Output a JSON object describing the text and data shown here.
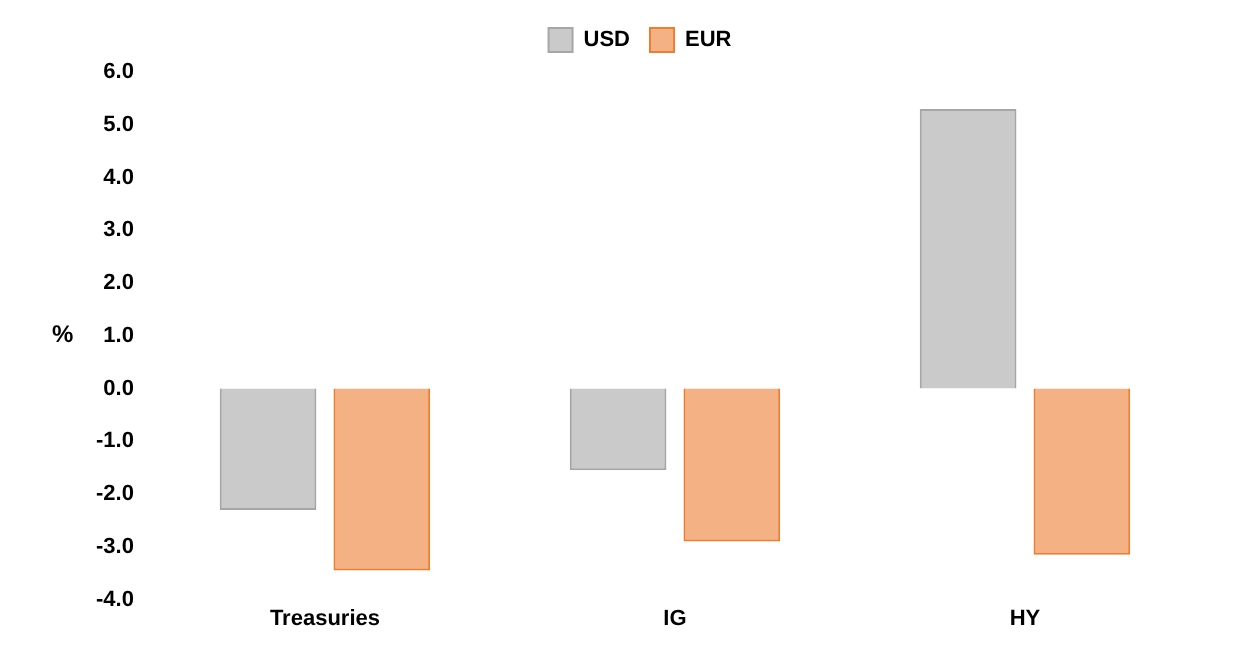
{
  "chart_data": {
    "type": "bar",
    "ylabel": "%",
    "categories": [
      "Treasuries",
      "IG",
      "HY"
    ],
    "series": [
      {
        "name": "USD",
        "color": "#a6a6a6",
        "values": [
          -2.3,
          -1.55,
          5.3
        ]
      },
      {
        "name": "EUR",
        "color": "#ed7d31",
        "values": [
          -3.45,
          -2.9,
          -3.15
        ]
      }
    ],
    "ylim": [
      -4,
      6
    ],
    "yticks": [
      {
        "value": -4,
        "label": "-4.0"
      },
      {
        "value": -3,
        "label": "-3.0"
      },
      {
        "value": -2,
        "label": "-2.0"
      },
      {
        "value": -1,
        "label": "-1.0"
      },
      {
        "value": 0,
        "label": "0.0"
      },
      {
        "value": 1,
        "label": "1.0"
      },
      {
        "value": 2,
        "label": "2.0"
      },
      {
        "value": 3,
        "label": "3.0"
      },
      {
        "value": 4,
        "label": "4.0"
      },
      {
        "value": 5,
        "label": "5.0"
      },
      {
        "value": 6,
        "label": "6.0"
      }
    ],
    "grid": false,
    "legend": "top"
  }
}
